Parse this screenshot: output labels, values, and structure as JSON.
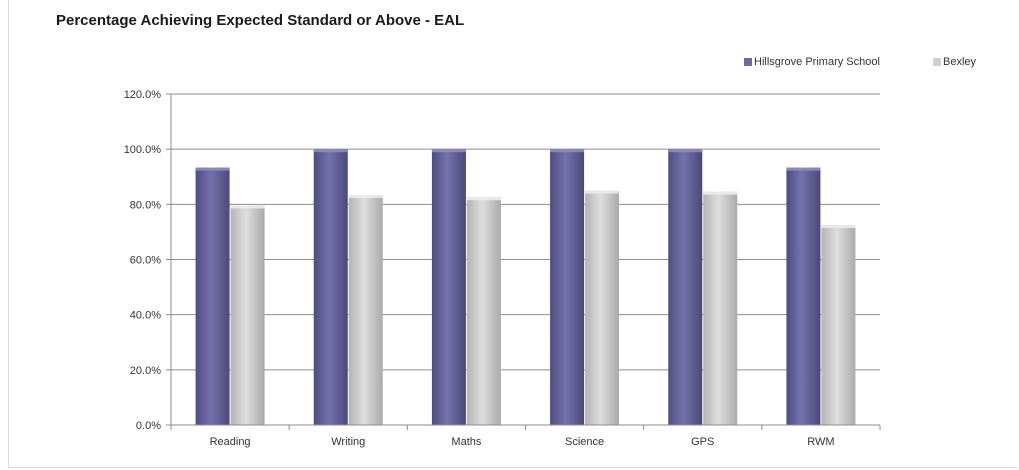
{
  "chart_data": {
    "type": "bar",
    "title": "Percentage Achieving Expected Standard or Above - EAL",
    "categories": [
      "Reading",
      "Writing",
      "Maths",
      "Science",
      "GPS",
      "RWM"
    ],
    "series": [
      {
        "name": "Hillsgrove Primary School",
        "values": [
          93.3,
          100.0,
          100.0,
          100.0,
          100.0,
          93.3
        ],
        "color": "#6b6aa3"
      },
      {
        "name": "Bexley",
        "values": [
          79.6,
          83.4,
          82.6,
          85.0,
          84.6,
          72.5
        ],
        "color": "#cfcfcf"
      }
    ],
    "ylim": [
      0,
      120
    ],
    "yticks": [
      "0.0%",
      "20.0%",
      "40.0%",
      "60.0%",
      "80.0%",
      "100.0%",
      "120.0%"
    ],
    "ytick_values": [
      0,
      20,
      40,
      60,
      80,
      100,
      120
    ],
    "grid": true,
    "legend_position": "top-right",
    "xlabel": "",
    "ylabel": ""
  }
}
